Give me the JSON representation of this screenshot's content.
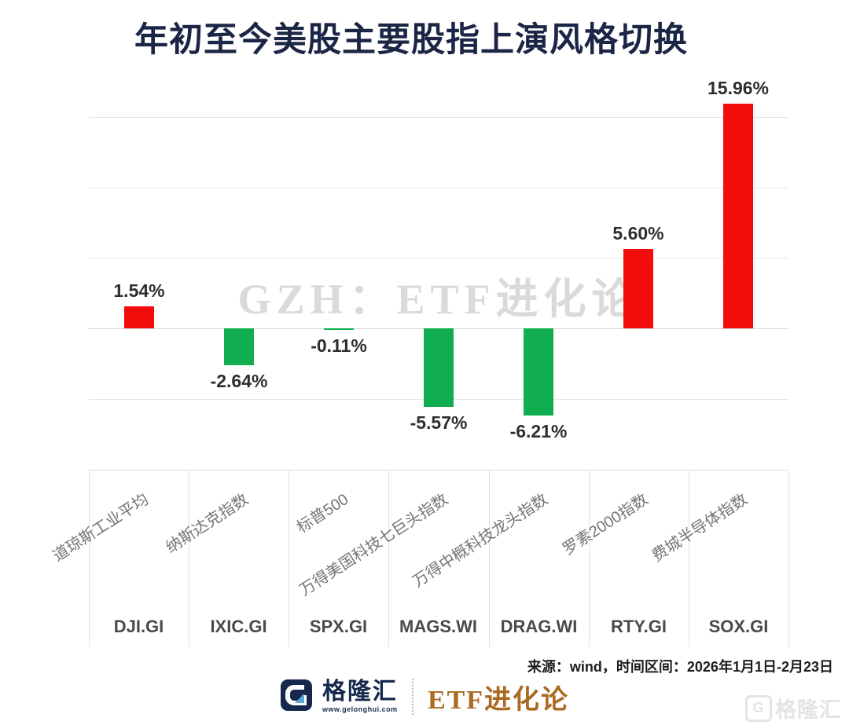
{
  "title": "年初至今美股主要股指上演风格切换",
  "watermark": "GZH：ETF进化论",
  "source_note": "来源：wind，时间区间：2026年1月1日-2月23日",
  "brand": {
    "name": "格隆汇",
    "url": "www.gelonghui.com",
    "channel": "ETF进化论",
    "corner_g": "G",
    "corner_text": "格隆汇"
  },
  "colors": {
    "title_navy": "#1b2545",
    "positive_red": "#f20c0c",
    "negative_green": "#10ad51",
    "gridline_gray": "#e6e6e6",
    "watermark_gray": "#dadada",
    "brand_navy": "#16294d",
    "brand_bronze": "#a96a21"
  },
  "chart_data": {
    "type": "bar",
    "title": "年初至今美股主要股指上演风格切换",
    "categories": [
      "道琼斯工业平均",
      "纳斯达克指数",
      "标普500",
      "万得美国科技七巨头指数",
      "万得中概科技龙头指数",
      "罗素2000指数",
      "费城半导体指数"
    ],
    "codes": [
      "DJI.GI",
      "IXIC.GI",
      "SPX.GI",
      "MAGS.WI",
      "DRAG.WI",
      "RTY.GI",
      "SOX.GI"
    ],
    "values": [
      1.54,
      -2.64,
      -0.11,
      -5.57,
      -6.21,
      5.6,
      15.96
    ],
    "labels": [
      "1.54%",
      "-2.64%",
      "-0.11%",
      "-5.57%",
      "-6.21%",
      "5.60%",
      "15.96%"
    ],
    "unit": "%",
    "ylim": [
      -10,
      17.5
    ],
    "gridlines_pct": [
      15,
      10,
      5,
      0,
      -5,
      -10
    ],
    "grid": true,
    "legend": false,
    "color_rule": "positive=red, negative=green",
    "positive_color": "#f20c0c",
    "negative_color": "#10ad51"
  }
}
